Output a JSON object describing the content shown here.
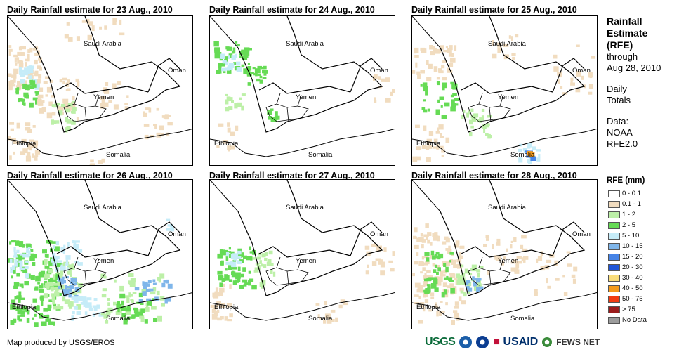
{
  "colors": {
    "land_outline": "#000000",
    "background": "#ffffff"
  },
  "panels": [
    {
      "title": "Daily Rainfall estimate for 23 Aug., 2010"
    },
    {
      "title": "Daily Rainfall estimate for 24 Aug., 2010"
    },
    {
      "title": "Daily Rainfall estimate for 25 Aug., 2010"
    },
    {
      "title": "Daily Rainfall estimate for 26 Aug., 2010"
    },
    {
      "title": "Daily Rainfall estimate for 27 Aug., 2010"
    },
    {
      "title": "Daily Rainfall estimate for 28 Aug., 2010"
    }
  ],
  "map_labels": {
    "saudi": "Saudi Arabia",
    "oman": "Oman",
    "yemen": "Yemen",
    "ethiopia": "Ethiopia",
    "somalia": "Somalia"
  },
  "legend": {
    "title_line1": "Rainfall",
    "title_line2": "Estimate",
    "title_line3": "(RFE)",
    "through": "through",
    "date": "Aug 28, 2010",
    "daily1": "Daily",
    "daily2": "Totals",
    "data1": "Data:",
    "data2": "NOAA-",
    "data3": "RFE2.0",
    "rfe_header": "RFE (mm)",
    "classes": [
      {
        "label": "0 - 0.1",
        "color": "#ffffff"
      },
      {
        "label": "0.1 - 1",
        "color": "#f1dcbf"
      },
      {
        "label": "1 - 2",
        "color": "#bdf0a8"
      },
      {
        "label": "2 - 5",
        "color": "#66db55"
      },
      {
        "label": "5 - 10",
        "color": "#c6ecf8"
      },
      {
        "label": "10 - 15",
        "color": "#7fb6ea"
      },
      {
        "label": "15 - 20",
        "color": "#4784e6"
      },
      {
        "label": "20 - 30",
        "color": "#1f55d8"
      },
      {
        "label": "30 - 40",
        "color": "#f9dd7c"
      },
      {
        "label": "40 - 50",
        "color": "#f59b1c"
      },
      {
        "label": "50 - 75",
        "color": "#f03c12"
      },
      {
        "label": "> 75",
        "color": "#9b1c1c"
      },
      {
        "label": "No Data",
        "color": "#9c9c9c"
      }
    ]
  },
  "credit": "Map produced by USGS/EROS",
  "logos": {
    "usgs": "USGS",
    "usaid": "USAID",
    "fews": "FEWS NET"
  }
}
